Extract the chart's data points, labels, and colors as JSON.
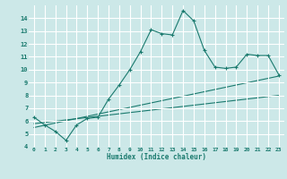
{
  "xlabel": "Humidex (Indice chaleur)",
  "background_color": "#cce8e8",
  "grid_color": "#ffffff",
  "line_color": "#1a7a6e",
  "xlim": [
    -0.5,
    23.5
  ],
  "ylim": [
    4,
    15
  ],
  "xticks": [
    0,
    1,
    2,
    3,
    4,
    5,
    6,
    7,
    8,
    9,
    10,
    11,
    12,
    13,
    14,
    15,
    16,
    17,
    18,
    19,
    20,
    21,
    22,
    23
  ],
  "yticks": [
    4,
    5,
    6,
    7,
    8,
    9,
    10,
    11,
    12,
    13,
    14
  ],
  "curve1_x": [
    0,
    1,
    2,
    3,
    4,
    5,
    6,
    7,
    8,
    9,
    10,
    11,
    12,
    13,
    14,
    15,
    16,
    17,
    18,
    19,
    20,
    21,
    22,
    23
  ],
  "curve1_y": [
    6.3,
    5.7,
    5.2,
    4.5,
    5.7,
    6.2,
    6.3,
    7.7,
    8.8,
    10.0,
    11.4,
    13.1,
    12.8,
    12.7,
    14.6,
    13.8,
    11.5,
    10.2,
    10.1,
    10.2,
    11.2,
    11.1,
    11.1,
    9.6
  ],
  "curve2_x": [
    0,
    23
  ],
  "curve2_y": [
    5.5,
    9.5
  ],
  "curve3_x": [
    0,
    23
  ],
  "curve3_y": [
    5.8,
    8.0
  ]
}
